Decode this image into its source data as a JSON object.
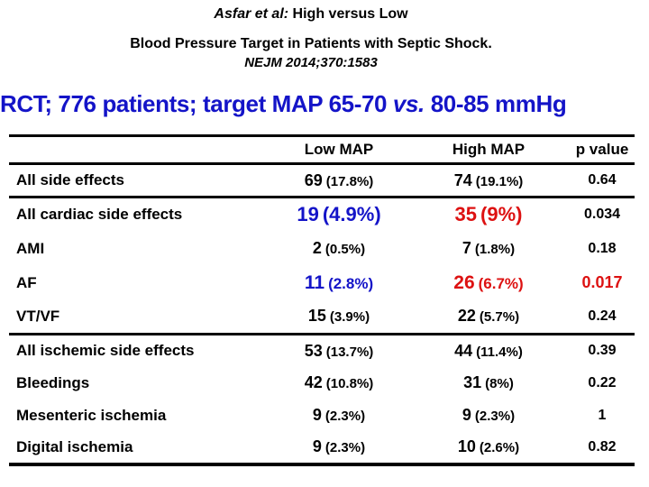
{
  "slide": {
    "title_line1_italic": "Asfar et al:",
    "title_line1_rest": " High versus Low",
    "title_line2": "Blood Pressure Target in Patients with Septic Shock.",
    "title_line3": "NEJM 2014;370:1583",
    "heading_prefix": "RCT; 776 patients; target MAP 65-70 ",
    "heading_vs": "vs.",
    "heading_suffix": " 80-85 mmHg"
  },
  "colors": {
    "heading_blue": "#1414C8",
    "value_blue": "#1414C8",
    "value_red": "#DD1111",
    "text_black": "#000000",
    "background": "#FFFFFF"
  },
  "table": {
    "columns": [
      "",
      "Low MAP",
      "High MAP",
      "p value"
    ],
    "rows": [
      {
        "label": "All side effects",
        "low_n": "69",
        "low_pct": "(17.8%)",
        "high_n": "74",
        "high_pct": "(19.1%)",
        "p": "0.64"
      },
      {
        "label": "All cardiac side effects",
        "low_n": "19",
        "low_pct": "(4.9%)",
        "high_n": "35",
        "high_pct": "(9%)",
        "p": "0.034"
      },
      {
        "label": "AMI",
        "low_n": "2",
        "low_pct": "(0.5%)",
        "high_n": "7",
        "high_pct": "(1.8%)",
        "p": "0.18"
      },
      {
        "label": "AF",
        "low_n": "11",
        "low_pct": "(2.8%)",
        "high_n": "26",
        "high_pct": "(6.7%)",
        "p": "0.017"
      },
      {
        "label": "VT/VF",
        "low_n": "15",
        "low_pct": "(3.9%)",
        "high_n": "22",
        "high_pct": "(5.7%)",
        "p": "0.24"
      },
      {
        "label": "All ischemic side effects",
        "low_n": "53",
        "low_pct": "(13.7%)",
        "high_n": "44",
        "high_pct": "(11.4%)",
        "p": "0.39"
      },
      {
        "label": "Bleedings",
        "low_n": "42",
        "low_pct": "(10.8%)",
        "high_n": "31",
        "high_pct": "(8%)",
        "p": "0.22"
      },
      {
        "label": "Mesenteric ischemia",
        "low_n": "9",
        "low_pct": "(2.3%)",
        "high_n": "9",
        "high_pct": "(2.3%)",
        "p": "1"
      },
      {
        "label": "Digital ischemia",
        "low_n": "9",
        "low_pct": "(2.3%)",
        "high_n": "10",
        "high_pct": "(2.6%)",
        "p": "0.82"
      }
    ]
  }
}
